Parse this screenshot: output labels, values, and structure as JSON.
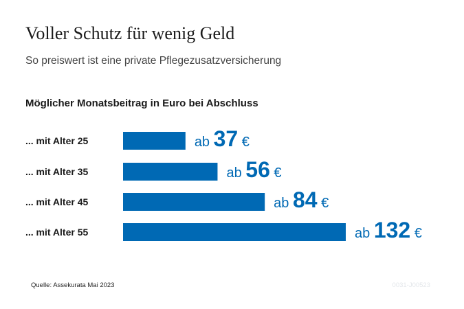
{
  "header": {
    "title": "Voller Schutz für wenig Geld",
    "subtitle": "So preiswert ist eine private Pflegezusatzversicherung"
  },
  "chart_heading": "Möglicher Monatsbeitrag in Euro bei Abschluss",
  "chart_data": {
    "type": "bar",
    "orientation": "horizontal",
    "title": "Möglicher Monatsbeitrag in Euro bei Abschluss",
    "categories": [
      "... mit Alter 25",
      "... mit Alter 35",
      "... mit Alter 45",
      "... mit Alter 55"
    ],
    "values": [
      37,
      56,
      84,
      132
    ],
    "label_prefix": "ab",
    "label_unit": "€",
    "grid": false,
    "color": "#0069b4"
  },
  "footer": {
    "source": "Quelle: Assekurata Mai 2023",
    "code": "0031-J00523"
  },
  "colors": {
    "bar": "#0069b4",
    "value_label": "#0069b4"
  }
}
